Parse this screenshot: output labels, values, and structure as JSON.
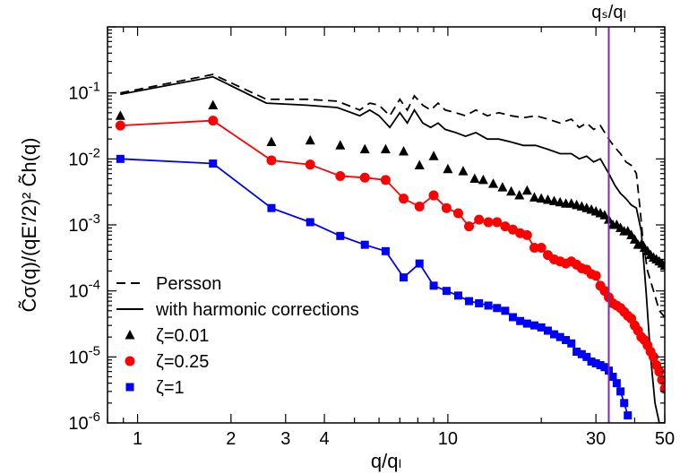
{
  "chart_data": {
    "type": "line",
    "xlabel": "q/qₗ",
    "ylabel": "C̃σ(q)/(qE'/2)² C̃h(q)",
    "x_scale": "log",
    "y_scale": "log",
    "xlim": [
      0.8,
      50
    ],
    "ylim": [
      1e-06,
      1
    ],
    "x_ticks": [
      1,
      2,
      3,
      4,
      10,
      30,
      50
    ],
    "x_tick_labels": [
      "1",
      "2",
      "3",
      "4",
      "10",
      "30",
      "50"
    ],
    "y_ticks": [
      1e-06,
      1e-05,
      0.0001,
      0.001,
      0.01,
      0.1
    ],
    "y_tick_labels": [
      {
        "base": "10",
        "exp": "-6"
      },
      {
        "base": "10",
        "exp": "-5"
      },
      {
        "base": "10",
        "exp": "-4"
      },
      {
        "base": "10",
        "exp": "-3"
      },
      {
        "base": "10",
        "exp": "-2"
      },
      {
        "base": "10",
        "exp": "-1"
      }
    ],
    "grid": false,
    "legend_position": "bottom-left",
    "annotation": {
      "text": "qₛ/qₗ",
      "x": 33
    },
    "vline": {
      "x": 33,
      "color": "#7b2fa0"
    },
    "series": [
      {
        "name": "Persson",
        "style": "dashed",
        "color": "#000000",
        "x": [
          0.88,
          1.75,
          2.6,
          3.5,
          4.4,
          5.2,
          5.6,
          6.0,
          6.5,
          7.0,
          7.4,
          7.8,
          8.3,
          8.8,
          9.3,
          9.8,
          10.6,
          11.4,
          12.3,
          13.4,
          14.6,
          16.0,
          17.5,
          19.2,
          21.0,
          23.0,
          25.0,
          26.5,
          28.0,
          29.5,
          31.0,
          33.0,
          34.5,
          36.0,
          37.5,
          39.0,
          40.5,
          41.5,
          42.5,
          44.0,
          46.0,
          48.0,
          50.0
        ],
        "y": [
          0.1,
          0.19,
          0.08,
          0.08,
          0.075,
          0.055,
          0.07,
          0.065,
          0.045,
          0.08,
          0.055,
          0.09,
          0.065,
          0.055,
          0.07,
          0.055,
          0.05,
          0.045,
          0.055,
          0.045,
          0.05,
          0.045,
          0.042,
          0.045,
          0.04,
          0.035,
          0.04,
          0.03,
          0.035,
          0.028,
          0.032,
          0.02,
          0.015,
          0.012,
          0.009,
          0.008,
          0.006,
          0.002,
          0.0006,
          0.0002,
          0.0001,
          5e-05,
          4e-05
        ]
      },
      {
        "name": "with harmonic corrections",
        "style": "solid",
        "color": "#000000",
        "x": [
          0.88,
          1.75,
          2.6,
          3.5,
          4.4,
          5.2,
          5.6,
          6.0,
          6.5,
          7.0,
          7.4,
          7.8,
          8.3,
          8.8,
          9.3,
          9.8,
          10.6,
          11.4,
          12.3,
          13.4,
          14.6,
          16.0,
          17.5,
          19.2,
          21.0,
          23.0,
          25.0,
          26.5,
          28.0,
          29.5,
          31.0,
          33.0,
          34.5,
          36.0,
          37.5,
          39.0,
          40.5,
          42.0,
          43.5,
          45.0,
          46.5,
          48.0,
          50.0
        ],
        "y": [
          0.095,
          0.175,
          0.07,
          0.065,
          0.06,
          0.045,
          0.055,
          0.045,
          0.03,
          0.05,
          0.035,
          0.055,
          0.035,
          0.03,
          0.035,
          0.028,
          0.025,
          0.022,
          0.025,
          0.02,
          0.02,
          0.018,
          0.016,
          0.016,
          0.014,
          0.012,
          0.012,
          0.01,
          0.011,
          0.009,
          0.01,
          0.006,
          0.004,
          0.003,
          0.0025,
          0.002,
          0.0018,
          0.0008,
          0.0001,
          1e-05,
          2e-06,
          1e-06,
          1e-06
        ]
      },
      {
        "name": "ζ=0.01",
        "style": "markers",
        "marker": "triangle",
        "color": "#000000",
        "x": [
          0.88,
          1.75,
          2.7,
          3.6,
          4.5,
          5.4,
          6.3,
          7.2,
          8.1,
          9.0,
          10.0,
          11.2,
          12.2,
          13.0,
          14.0,
          15.0,
          16.0,
          17.0,
          18.0,
          19.0,
          20.0,
          21.0,
          22.0,
          23.0,
          24.0,
          25.0,
          26.0,
          27.0,
          28.0,
          29.0,
          30.0,
          31.0,
          32.0,
          33.0,
          34.0,
          35.0,
          36.0,
          37.0,
          38.0,
          39.0,
          40.0,
          41.0,
          42.0,
          43.0,
          44.0,
          45.0,
          46.0,
          47.0,
          48.0,
          49.0,
          50.0
        ],
        "y": [
          0.045,
          0.065,
          0.018,
          0.019,
          0.016,
          0.014,
          0.014,
          0.013,
          0.008,
          0.011,
          0.007,
          0.0065,
          0.005,
          0.0048,
          0.0042,
          0.0037,
          0.0032,
          0.0028,
          0.0033,
          0.0026,
          0.0025,
          0.0024,
          0.0023,
          0.0022,
          0.0021,
          0.0021,
          0.002,
          0.0019,
          0.0018,
          0.0017,
          0.0016,
          0.0015,
          0.0014,
          0.0012,
          0.001,
          0.001,
          0.0009,
          0.0008,
          0.0008,
          0.0007,
          0.0006,
          0.0005,
          0.0005,
          0.00045,
          0.0004,
          0.00035,
          0.00032,
          0.0003,
          0.00028,
          0.00026,
          0.00024
        ]
      },
      {
        "name": "ζ=0.25",
        "style": "markers+line",
        "marker": "circle",
        "color": "#ff0000",
        "x": [
          0.88,
          1.75,
          2.7,
          3.6,
          4.5,
          5.4,
          6.3,
          7.2,
          8.1,
          9.0,
          9.9,
          10.8,
          11.7,
          12.6,
          13.5,
          14.4,
          15.3,
          16.2,
          17.1,
          18.0,
          19.0,
          20.0,
          21.0,
          22.0,
          23.0,
          24.0,
          25.0,
          26.0,
          27.0,
          28.0,
          29.0,
          30.0,
          31.0,
          32.0,
          33.0,
          34.0,
          35.0,
          36.0,
          37.0,
          38.0,
          39.0,
          40.0,
          41.0,
          42.0,
          43.0,
          44.0,
          45.0,
          46.0,
          47.0,
          48.0,
          49.0,
          50.0
        ],
        "y": [
          0.032,
          0.038,
          0.0095,
          0.0082,
          0.0055,
          0.0052,
          0.0048,
          0.0025,
          0.0019,
          0.0028,
          0.0018,
          0.0015,
          0.00095,
          0.0012,
          0.0011,
          0.0011,
          0.00095,
          0.00085,
          0.00075,
          0.0007,
          0.00045,
          0.00045,
          0.00035,
          0.0003,
          0.00028,
          0.00026,
          0.00028,
          0.00025,
          0.00022,
          0.00021,
          0.00018,
          0.00017,
          0.00012,
          0.0001,
          8e-05,
          6.5e-05,
          6e-05,
          5.5e-05,
          4.8e-05,
          4.2e-05,
          3.8e-05,
          3e-05,
          2.5e-05,
          2e-05,
          1.8e-05,
          1.5e-05,
          1.2e-05,
          1e-05,
          7.5e-06,
          6e-06,
          4.5e-06,
          3.3e-06
        ]
      },
      {
        "name": "ζ=1",
        "style": "markers+line",
        "marker": "square",
        "color": "#0000ff",
        "x": [
          0.88,
          1.75,
          2.7,
          3.6,
          4.5,
          5.4,
          6.3,
          7.2,
          8.1,
          9.0,
          9.9,
          10.8,
          11.7,
          12.6,
          13.5,
          14.4,
          15.3,
          16.2,
          17.1,
          18.0,
          19.0,
          20.0,
          21.0,
          22.0,
          23.0,
          24.0,
          25.0,
          26.0,
          27.0,
          28.0,
          29.0,
          30.0,
          31.0,
          32.0,
          33.0,
          34.0,
          35.0,
          36.0,
          37.0,
          38.0
        ],
        "y": [
          0.01,
          0.0085,
          0.0018,
          0.0011,
          0.00068,
          0.0005,
          0.0004,
          0.00016,
          0.00026,
          0.00012,
          0.0001,
          8.5e-05,
          7e-05,
          6.5e-05,
          6e-05,
          5.5e-05,
          5e-05,
          4e-05,
          3.5e-05,
          3.2e-05,
          3e-05,
          2.8e-05,
          2.5e-05,
          2.2e-05,
          2e-05,
          1.8e-05,
          1.6e-05,
          1.2e-05,
          1.1e-05,
          1e-05,
          8.5e-06,
          8e-06,
          7.5e-06,
          7e-06,
          6.2e-06,
          5e-06,
          4e-06,
          3e-06,
          2e-06,
          1.3e-06
        ]
      }
    ]
  }
}
